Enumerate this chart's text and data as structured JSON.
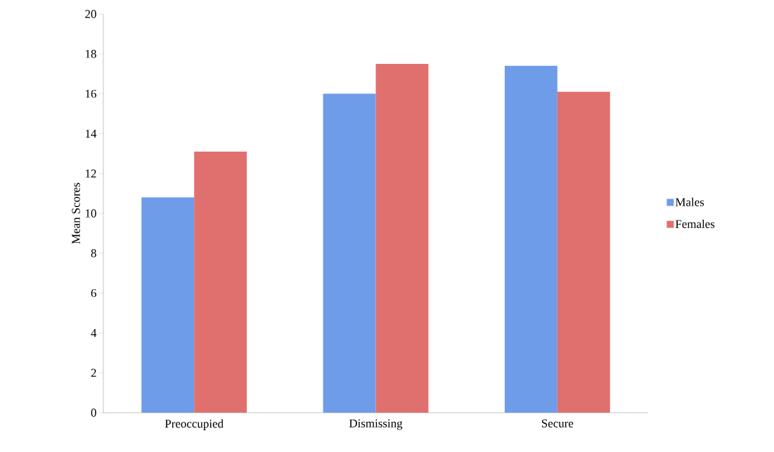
{
  "chart_data": {
    "type": "bar",
    "ylabel": "Mean Scores",
    "categories": [
      "Preoccupied",
      "Dismissing",
      "Secure"
    ],
    "series": [
      {
        "name": "Males",
        "color": "#6e9ce8",
        "values": [
          10.8,
          16.0,
          17.4
        ]
      },
      {
        "name": "Females",
        "color": "#e0706e",
        "values": [
          13.1,
          17.5,
          16.1
        ]
      }
    ],
    "ylim": [
      0,
      20
    ],
    "yticks": [
      0,
      2,
      4,
      6,
      8,
      10,
      12,
      14,
      16,
      18,
      20
    ],
    "legend": "right",
    "grid": false
  }
}
